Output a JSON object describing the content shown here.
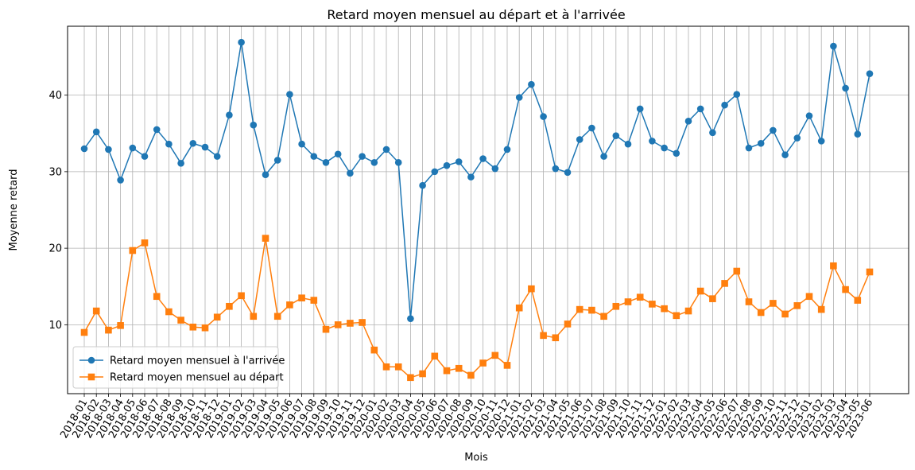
{
  "chart_data": {
    "type": "line",
    "title": "Retard moyen mensuel au départ et à l'arrivée",
    "xlabel": "Mois",
    "ylabel": "Moyenne retard",
    "ylim": [
      1,
      49
    ],
    "yticks": [
      10,
      20,
      30,
      40
    ],
    "grid": true,
    "legend_position": "lower-left",
    "categories": [
      "2018-01",
      "2018-02",
      "2018-03",
      "2018-04",
      "2018-05",
      "2018-06",
      "2018-07",
      "2018-08",
      "2018-09",
      "2018-10",
      "2018-11",
      "2018-12",
      "2019-01",
      "2019-02",
      "2019-03",
      "2019-04",
      "2019-05",
      "2019-06",
      "2019-07",
      "2019-08",
      "2019-09",
      "2019-10",
      "2019-11",
      "2019-12",
      "2020-01",
      "2020-02",
      "2020-03",
      "2020-04",
      "2020-05",
      "2020-06",
      "2020-07",
      "2020-08",
      "2020-09",
      "2020-10",
      "2020-11",
      "2020-12",
      "2021-01",
      "2021-02",
      "2021-03",
      "2021-04",
      "2021-05",
      "2021-06",
      "2021-07",
      "2021-08",
      "2021-09",
      "2021-10",
      "2021-11",
      "2021-12",
      "2022-01",
      "2022-02",
      "2022-03",
      "2022-04",
      "2022-05",
      "2022-06",
      "2022-07",
      "2022-08",
      "2022-09",
      "2022-10",
      "2022-11",
      "2022-12",
      "2023-01",
      "2023-02",
      "2023-03",
      "2023-04",
      "2023-05",
      "2023-06"
    ],
    "series": [
      {
        "name": "Retard moyen mensuel à l'arrivée",
        "color": "#1f77b4",
        "marker": "circle",
        "values": [
          33.0,
          35.2,
          32.9,
          28.9,
          33.1,
          32.0,
          35.5,
          33.6,
          31.1,
          33.7,
          33.2,
          32.0,
          37.4,
          46.9,
          36.1,
          29.6,
          31.5,
          40.1,
          33.6,
          32.0,
          31.2,
          32.3,
          29.8,
          32.0,
          31.2,
          32.9,
          31.2,
          10.8,
          28.2,
          30.0,
          30.8,
          31.3,
          29.3,
          31.7,
          30.4,
          32.9,
          39.7,
          41.4,
          37.2,
          30.4,
          29.9,
          34.2,
          35.7,
          32.0,
          34.7,
          33.6,
          38.2,
          34.0,
          33.1,
          32.4,
          36.6,
          38.2,
          35.1,
          38.7,
          40.1,
          33.1,
          33.7,
          35.4,
          32.2,
          34.4,
          37.3,
          34.0,
          46.4,
          40.9,
          34.9,
          42.8
        ]
      },
      {
        "name": "Retard moyen mensuel au départ",
        "color": "#ff7f0e",
        "marker": "square",
        "values": [
          9.0,
          11.8,
          9.3,
          9.9,
          19.7,
          20.7,
          13.7,
          11.7,
          10.6,
          9.7,
          9.6,
          11.0,
          12.4,
          13.8,
          11.1,
          21.3,
          11.1,
          12.6,
          13.5,
          13.2,
          9.4,
          10.0,
          10.2,
          10.3,
          6.7,
          4.5,
          4.5,
          3.1,
          3.6,
          5.9,
          4.0,
          4.3,
          3.4,
          5.0,
          6.0,
          4.7,
          12.2,
          14.7,
          8.6,
          8.3,
          10.1,
          12.0,
          11.9,
          11.1,
          12.4,
          13.0,
          13.6,
          12.7,
          12.1,
          11.2,
          11.8,
          14.4,
          13.4,
          15.4,
          17.0,
          13.0,
          11.6,
          12.8,
          11.4,
          12.5,
          13.7,
          12.0,
          17.7,
          14.6,
          13.2,
          16.9
        ]
      }
    ]
  }
}
